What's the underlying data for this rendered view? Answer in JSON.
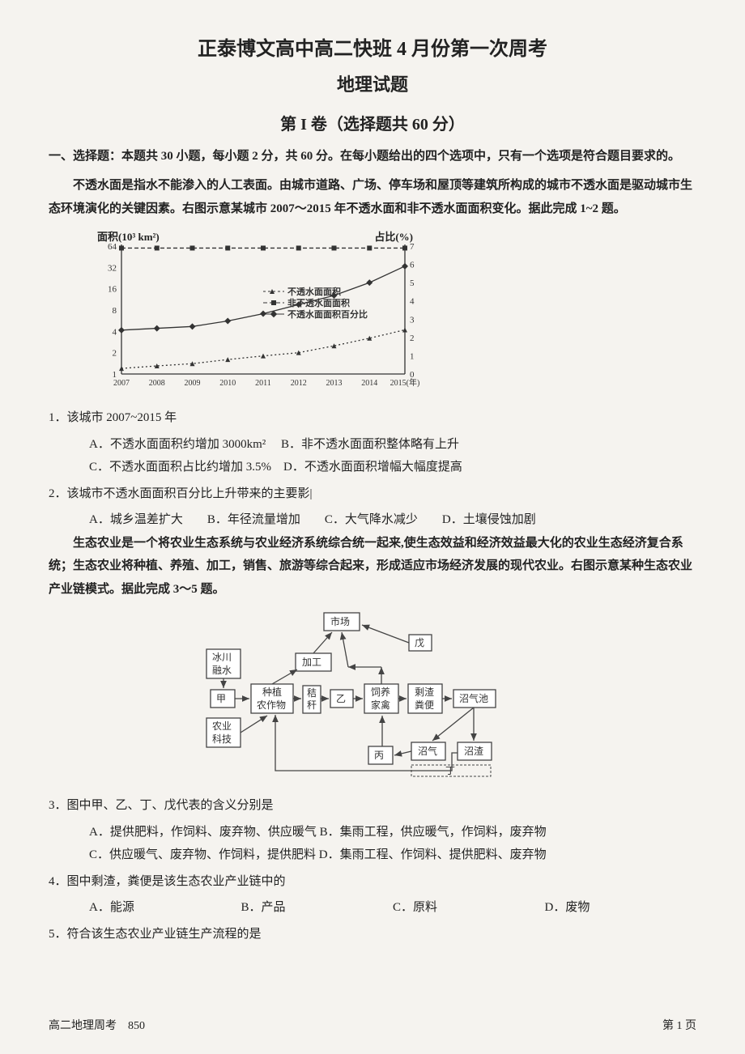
{
  "header": {
    "title_main": "正泰博文高中高二快班 4 月份第一次周考",
    "title_sub": "地理试题",
    "section": "第 I 卷（选择题共 60 分）"
  },
  "instructions": "一、选择题：本题共 30 小题，每小题 2 分，共 60 分。在每小题给出的四个选项中，只有一个选项是符合题目要求的。",
  "passage1": "不透水面是指水不能渗入的人工表面。由城市道路、广场、停车场和屋顶等建筑所构成的城市不透水面是驱动城市生态环境演化的关键因素。右图示意某城市 2007～2015 年不透水面和非不透水面面积变化。据此完成 1~2 题。",
  "chart1": {
    "type": "dual-axis-line",
    "y1_label": "面积(10³ km²)",
    "y2_label": "占比(%)",
    "x_years": [
      "2007",
      "2008",
      "2009",
      "2010",
      "2011",
      "2012",
      "2013",
      "2014",
      "2015(年)"
    ],
    "y1_ticks": [
      1,
      2,
      4,
      8,
      16,
      32,
      64
    ],
    "y2_ticks": [
      0,
      1,
      2,
      3,
      4,
      5,
      6,
      7
    ],
    "legend": {
      "impervious": "不透水面面积",
      "non_impervious": "非不透水面面积",
      "percent": "不透水面面积百分比"
    },
    "series": {
      "non_impervious": {
        "values": [
          60,
          60,
          60,
          60,
          60,
          60,
          60,
          60,
          60
        ],
        "style": "square-dashed",
        "color": "#333"
      },
      "impervious": {
        "values": [
          1.2,
          1.3,
          1.4,
          1.6,
          1.8,
          2.0,
          2.5,
          3.2,
          4.2
        ],
        "style": "triangle-dotted",
        "color": "#333"
      },
      "percent": {
        "values": [
          2.4,
          2.5,
          2.6,
          2.9,
          3.3,
          3.8,
          4.3,
          5.0,
          5.9
        ],
        "style": "diamond-solid",
        "color": "#333"
      }
    },
    "background_color": "#ffffff",
    "grid_color": "#d9d9d9",
    "axis_color": "#333"
  },
  "q1": {
    "stem": "1．该城市 2007~2015 年",
    "A": "A．不透水面面积约增加 3000km²",
    "B": "B．非不透水面面积整体略有上升",
    "C": "C．不透水面面积占比约增加 3.5%",
    "D": "D．不透水面面积增幅大幅度提高"
  },
  "q2": {
    "stem": "2．该城市不透水面面积百分比上升带来的主要影|",
    "A": "A．城乡温差扩大",
    "B": "B．年径流量增加",
    "C": "C．大气降水减少",
    "D": "D．土壤侵蚀加剧"
  },
  "passage2": "生态农业是一个将农业生态系统与农业经济系统综合统一起来,使生态效益和经济效益最大化的农业生态经济复合系统；生态农业将种植、养殖、加工，销售、旅游等综合起来，形成适应市场经济发展的现代农业。右图示意某种生态农业产业链模式。据此完成 3～5 题。",
  "diagram": {
    "type": "flowchart",
    "nodes": {
      "market": "市场",
      "wu": "戊",
      "jiagong": "加工",
      "bingchuan": "冰川",
      "rongshui": "融水",
      "jia": "甲",
      "zhongzhi_top": "种植",
      "zhongzhi_bot": "农作物",
      "jie_top": "秸",
      "jie_bot": "秆",
      "yi": "乙",
      "siyang_top": "饲养",
      "siyang_bot": "家禽",
      "shengzha_top": "剩渣",
      "shengzha_bot": "粪便",
      "zhaoqichi": "沼气池",
      "nongye": "农业",
      "keji": "科技",
      "bing": "丙",
      "zhaoqi": "沼气",
      "zhaozha": "沼渣",
      "ding": "丁"
    },
    "colors": {
      "fill": "#ffffff",
      "stroke": "#444444",
      "text": "#333333"
    }
  },
  "q3": {
    "stem": "3．图中甲、乙、丁、戊代表的含义分别是",
    "A": "A．提供肥料，作饲料、废弃物、供应暖气",
    "B": "B．集雨工程，供应暖气，作饲料，废弃物",
    "C": "C．供应暖气、废弃物、作饲料，提供肥料",
    "D": "D．集雨工程、作饲料、提供肥料、废弃物"
  },
  "q4": {
    "stem": "4．图中剩渣，粪便是该生态农业产业链中的",
    "A": "A．能源",
    "B": "B．产品",
    "C": "C．原料",
    "D": "D．废物"
  },
  "q5": {
    "stem": "5．符合该生态农业产业链生产流程的是"
  },
  "footer": {
    "left": "高二地理周考 850",
    "right": "第 1 页"
  }
}
